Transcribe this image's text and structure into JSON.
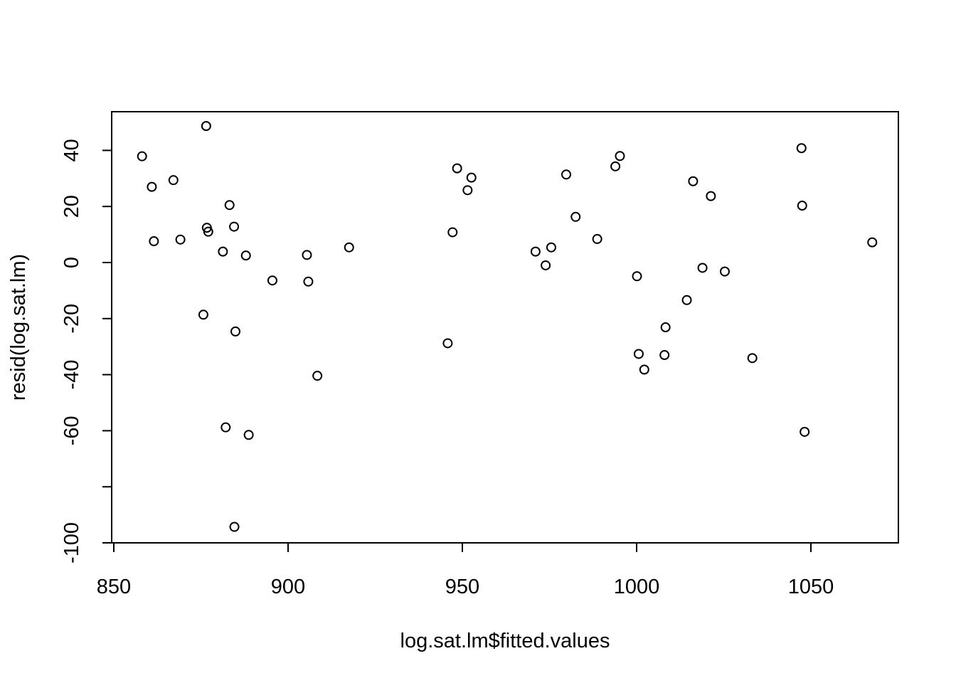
{
  "chart_data": {
    "type": "scatter",
    "title": "",
    "xlabel": "log.sat.lm$fitted.values",
    "ylabel": "resid(log.sat.lm)",
    "xlim": [
      850,
      1075
    ],
    "ylim": [
      -100,
      50
    ],
    "x_ticks": [
      850,
      900,
      950,
      1000,
      1050
    ],
    "x_tick_labels": [
      "850",
      "900",
      "950",
      "1000",
      "1050"
    ],
    "y_ticks": [
      -100,
      -80,
      -60,
      -40,
      -20,
      0,
      20,
      40
    ],
    "y_tick_labels": [
      "-100",
      "",
      "-60",
      "-40",
      "-20",
      "0",
      "20",
      "40"
    ],
    "grid": false,
    "points": [
      {
        "x": 858.1,
        "y": 37.9
      },
      {
        "x": 860.9,
        "y": 27.0
      },
      {
        "x": 861.5,
        "y": 7.6
      },
      {
        "x": 867.1,
        "y": 29.4
      },
      {
        "x": 869.1,
        "y": 8.2
      },
      {
        "x": 875.7,
        "y": -18.6
      },
      {
        "x": 876.5,
        "y": 48.7
      },
      {
        "x": 876.7,
        "y": 12.4
      },
      {
        "x": 877.1,
        "y": 11.0
      },
      {
        "x": 881.3,
        "y": 3.9
      },
      {
        "x": 882.1,
        "y": -58.8
      },
      {
        "x": 883.2,
        "y": 20.5
      },
      {
        "x": 884.5,
        "y": 12.8
      },
      {
        "x": 884.6,
        "y": -94.3
      },
      {
        "x": 884.9,
        "y": -24.6
      },
      {
        "x": 887.9,
        "y": 2.5
      },
      {
        "x": 888.7,
        "y": -61.5
      },
      {
        "x": 895.5,
        "y": -6.4
      },
      {
        "x": 905.4,
        "y": 2.7
      },
      {
        "x": 905.8,
        "y": -6.8
      },
      {
        "x": 908.4,
        "y": -40.4
      },
      {
        "x": 917.5,
        "y": 5.4
      },
      {
        "x": 945.8,
        "y": -28.8
      },
      {
        "x": 947.2,
        "y": 10.8
      },
      {
        "x": 948.5,
        "y": 33.6
      },
      {
        "x": 951.5,
        "y": 25.8
      },
      {
        "x": 952.6,
        "y": 30.3
      },
      {
        "x": 971.0,
        "y": 3.9
      },
      {
        "x": 973.9,
        "y": -1.0
      },
      {
        "x": 975.5,
        "y": 5.4
      },
      {
        "x": 979.8,
        "y": 31.4
      },
      {
        "x": 982.5,
        "y": 16.3
      },
      {
        "x": 988.7,
        "y": 8.4
      },
      {
        "x": 993.9,
        "y": 34.3
      },
      {
        "x": 995.2,
        "y": 38.0
      },
      {
        "x": 1000.1,
        "y": -4.9
      },
      {
        "x": 1000.6,
        "y": -32.6
      },
      {
        "x": 1002.2,
        "y": -38.2
      },
      {
        "x": 1008.0,
        "y": -33.0
      },
      {
        "x": 1008.3,
        "y": -23.1
      },
      {
        "x": 1014.4,
        "y": -13.4
      },
      {
        "x": 1016.2,
        "y": 29.0
      },
      {
        "x": 1018.9,
        "y": -1.9
      },
      {
        "x": 1021.3,
        "y": 23.7
      },
      {
        "x": 1025.3,
        "y": -3.2
      },
      {
        "x": 1033.2,
        "y": -34.1
      },
      {
        "x": 1047.3,
        "y": 40.8
      },
      {
        "x": 1047.5,
        "y": 20.3
      },
      {
        "x": 1048.2,
        "y": -60.4
      },
      {
        "x": 1067.6,
        "y": 7.2
      }
    ]
  }
}
